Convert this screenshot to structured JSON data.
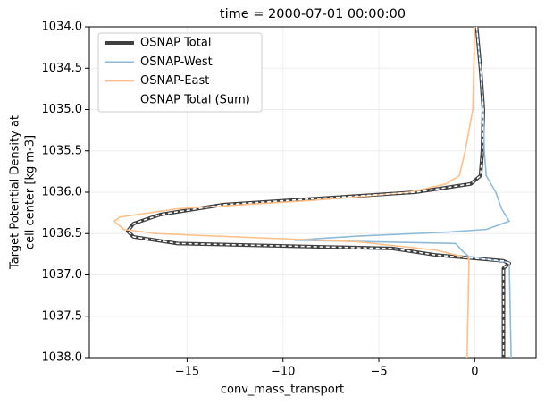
{
  "chart_data": {
    "type": "line",
    "title": "time = 2000-07-01 00:00:00",
    "xlabel": "conv_mass_transport",
    "ylabel": [
      "Target Potential Density at",
      "cell center [kg m-3]"
    ],
    "xlim": [
      -20.1,
      3.2
    ],
    "ylim": [
      1038,
      1034
    ],
    "xticks": [
      {
        "value": -15,
        "label": "−15"
      },
      {
        "value": -10,
        "label": "−10"
      },
      {
        "value": -5,
        "label": "−5"
      },
      0
    ],
    "yticks": [
      {
        "value": 1034,
        "label": "1034.0"
      },
      {
        "value": 1034.5,
        "label": "1034.5"
      },
      {
        "value": 1035,
        "label": "1035.0"
      },
      {
        "value": 1035.5,
        "label": "1035.5"
      },
      {
        "value": 1036,
        "label": "1036.0"
      },
      {
        "value": 1036.5,
        "label": "1036.5"
      },
      {
        "value": 1037,
        "label": "1037.0"
      },
      {
        "value": 1037.5,
        "label": "1037.5"
      },
      {
        "value": 1038,
        "label": "1038.0"
      }
    ],
    "grid": true,
    "legend": "upper left",
    "series": [
      {
        "name": "OSNAP Total",
        "color": "#404040",
        "linewidth": 4,
        "linestyle": "solid",
        "y": [
          1034,
          1034.5,
          1035,
          1035.5,
          1035.8,
          1035.9,
          1036,
          1036.15,
          1036.27,
          1036.38,
          1036.47,
          1036.54,
          1036.62,
          1036.68,
          1036.76,
          1036.83,
          1036.86,
          1036.92,
          1038
        ],
        "values": [
          0.1,
          0.3,
          0.45,
          0.4,
          0.3,
          -0.2,
          -3.1,
          -13.1,
          -16.4,
          -17.8,
          -18.1,
          -17.8,
          -15.5,
          -4.3,
          -2,
          1.5,
          1.8,
          1.5,
          1.5
        ]
      },
      {
        "name": "OSNAP-West",
        "color": "#8fbbd9",
        "linewidth": 1.6,
        "linestyle": "solid",
        "y": [
          1034,
          1034.5,
          1035,
          1035.5,
          1035.8,
          1036,
          1036.2,
          1036.35,
          1036.45,
          1036.48,
          1036.53,
          1036.58,
          1036.62,
          1036.72,
          1036.78,
          1036.85,
          1038
        ],
        "values": [
          0.1,
          0.3,
          0.45,
          0.5,
          0.6,
          1.1,
          1.4,
          1.8,
          0.6,
          -1.3,
          -6.1,
          -9.4,
          -1,
          -0.6,
          -0.3,
          1.8,
          1.9
        ]
      },
      {
        "name": "OSNAP-East",
        "color": "#ffbf86",
        "linewidth": 1.6,
        "linestyle": "solid",
        "y": [
          1034,
          1034.5,
          1035,
          1035.5,
          1035.8,
          1035.9,
          1036,
          1036.1,
          1036.2,
          1036.3,
          1036.35,
          1036.45,
          1036.5,
          1036.6,
          1036.7,
          1036.8,
          1036.85,
          1038
        ],
        "values": [
          0,
          -0.05,
          -0.1,
          -0.5,
          -0.8,
          -1.5,
          -3.4,
          -8.5,
          -15.5,
          -18.5,
          -18.8,
          -18.3,
          -16.6,
          -6.1,
          -2,
          -0.3,
          -0.3,
          -0.4
        ]
      },
      {
        "name": "OSNAP Total (Sum)",
        "color": "#ffffff",
        "linewidth": 1.5,
        "linestyle": "dashed",
        "y": [
          1034,
          1034.5,
          1035,
          1035.5,
          1035.8,
          1035.9,
          1036,
          1036.15,
          1036.27,
          1036.38,
          1036.47,
          1036.54,
          1036.62,
          1036.68,
          1036.76,
          1036.83,
          1036.86,
          1036.92,
          1038
        ],
        "values": [
          0.1,
          0.3,
          0.45,
          0.4,
          0.3,
          -0.2,
          -3.1,
          -13.1,
          -16.4,
          -17.8,
          -18.1,
          -17.8,
          -15.5,
          -4.3,
          -2,
          1.5,
          1.8,
          1.5,
          1.5
        ]
      }
    ]
  }
}
